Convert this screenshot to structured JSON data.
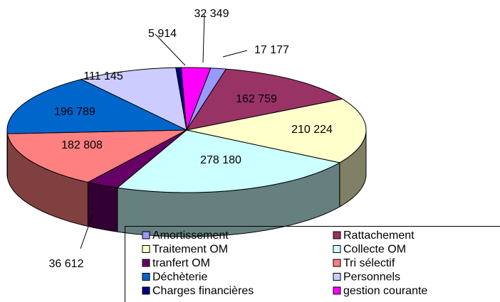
{
  "chart_data": {
    "type": "pie",
    "categories": [
      "Amortissement",
      "Rattachement",
      "Traitement OM",
      "Collecte OM",
      "tranfert OM",
      "Tri sélectif",
      "Déchèterie",
      "Personnels",
      "Charges financières",
      "gestion courante"
    ],
    "values": [
      17177,
      162759,
      210224,
      278180,
      36612,
      182808,
      196789,
      111145,
      5914,
      32349
    ],
    "value_labels": [
      "17 177",
      "162 759",
      "210 224",
      "278 180",
      "36 612",
      "182 808",
      "196 789",
      "111 145",
      "5 914",
      "32 349"
    ],
    "colors": [
      "#9999ff",
      "#993366",
      "#ffffcc",
      "#ccffff",
      "#660066",
      "#ff8080",
      "#0066cc",
      "#ccccff",
      "#000080",
      "#ff00ff"
    ],
    "legend": "bottom"
  }
}
